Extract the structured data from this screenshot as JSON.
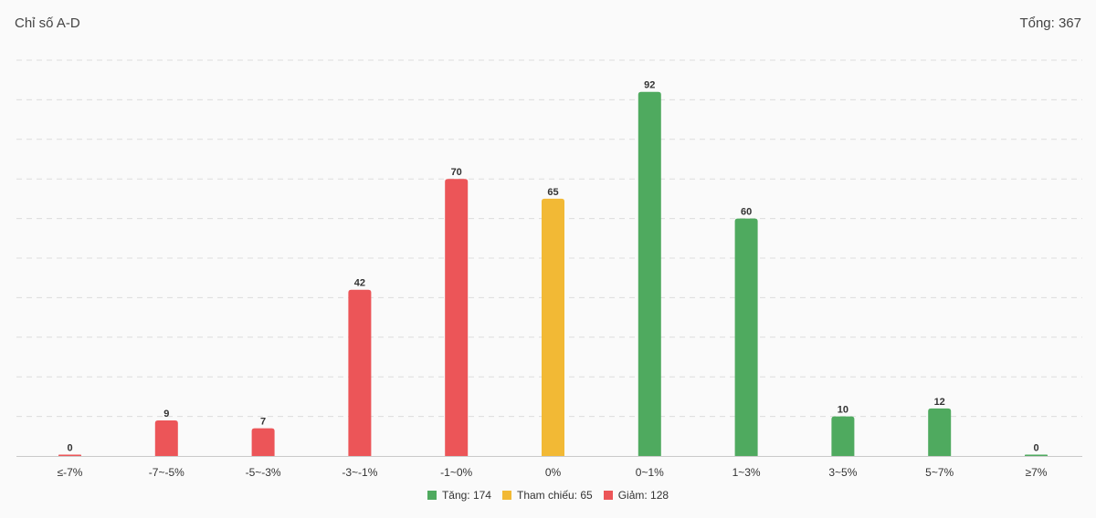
{
  "header": {
    "title": "Chỉ số A-D",
    "total": "Tổng: 367"
  },
  "colors": {
    "up": "#4faa5f",
    "ref": "#f2b935",
    "down": "#ec5558",
    "grid": "#dddddd",
    "axis": "#c9c9c9"
  },
  "chart_data": {
    "type": "bar",
    "categories": [
      "≤-7%",
      "-7~-5%",
      "-5~-3%",
      "-3~-1%",
      "-1~0%",
      "0%",
      "0~1%",
      "1~3%",
      "3~5%",
      "5~7%",
      "≥7%"
    ],
    "values": [
      0,
      9,
      7,
      42,
      70,
      65,
      92,
      60,
      10,
      12,
      0
    ],
    "bar_groups": [
      "down",
      "down",
      "down",
      "down",
      "down",
      "ref",
      "up",
      "up",
      "up",
      "up",
      "up"
    ],
    "ylim": [
      0,
      100
    ],
    "grid": true,
    "data_labels": true,
    "legend_position": "bottom-center"
  },
  "legend": [
    {
      "label": "Tăng: 174",
      "color_key": "up"
    },
    {
      "label": "Tham chiếu: 65",
      "color_key": "ref"
    },
    {
      "label": "Giảm: 128",
      "color_key": "down"
    }
  ]
}
